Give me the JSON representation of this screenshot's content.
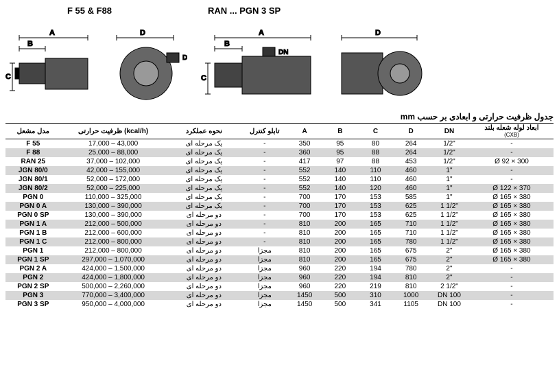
{
  "top": {
    "label_left": "F 55 & F88",
    "label_right": "RAN ... PGN 3 SP"
  },
  "caption": "جدول ظرفیت حرارتی و ابعادی بر حسب mm",
  "headers": {
    "model": "مدل مشعل",
    "capacity": "ظرفیت حرارتی (kcal/h)",
    "mode": "نحوه عملکرد",
    "panel": "تابلو کنترل",
    "A": "A",
    "B": "B",
    "C": "C",
    "D": "D",
    "DN": "DN",
    "tube": "ابعاد لوله شعله بلند",
    "tube_sub": "(CXB)"
  },
  "modes": {
    "single": "یک مرحله ای",
    "two": "دو مرحله ای"
  },
  "panel": {
    "dash": "-",
    "sep": "مجزا"
  },
  "rows": [
    {
      "model": "F 55",
      "cap": "17,000 – 43,000",
      "mode": "single",
      "panel": "dash",
      "A": "350",
      "B": "95",
      "C": "80",
      "D": "264",
      "DN": "1/2\"",
      "tube": "-"
    },
    {
      "model": "F 88",
      "cap": "25,000 – 88,000",
      "mode": "single",
      "panel": "dash",
      "A": "360",
      "B": "95",
      "C": "88",
      "D": "264",
      "DN": "1/2\"",
      "tube": "-"
    },
    {
      "model": "RAN 25",
      "cap": "37,000 – 102,000",
      "mode": "single",
      "panel": "dash",
      "A": "417",
      "B": "97",
      "C": "88",
      "D": "453",
      "DN": "1/2\"",
      "tube": "Ø 92 × 300"
    },
    {
      "model": "JGN 80/0",
      "cap": "42,000 – 155,000",
      "mode": "single",
      "panel": "dash",
      "A": "552",
      "B": "140",
      "C": "110",
      "D": "460",
      "DN": "1\"",
      "tube": "-"
    },
    {
      "model": "JGN 80/1",
      "cap": "52,000 – 172,000",
      "mode": "single",
      "panel": "dash",
      "A": "552",
      "B": "140",
      "C": "110",
      "D": "460",
      "DN": "1\"",
      "tube": "-"
    },
    {
      "model": "JGN 80/2",
      "cap": "52,000 – 225,000",
      "mode": "single",
      "panel": "dash",
      "A": "552",
      "B": "140",
      "C": "120",
      "D": "460",
      "DN": "1\"",
      "tube": "Ø 122 × 370"
    },
    {
      "model": "PGN 0",
      "cap": "110,000 – 325,000",
      "mode": "single",
      "panel": "dash",
      "A": "700",
      "B": "170",
      "C": "153",
      "D": "585",
      "DN": "1\"",
      "tube": "Ø 165 × 380"
    },
    {
      "model": "PGN 0 A",
      "cap": "130,000 – 390,000",
      "mode": "single",
      "panel": "dash",
      "A": "700",
      "B": "170",
      "C": "153",
      "D": "625",
      "DN": "1 1/2\"",
      "tube": "Ø 165 × 380"
    },
    {
      "model": "PGN 0 SP",
      "cap": "130,000 – 390,000",
      "mode": "two",
      "panel": "dash",
      "A": "700",
      "B": "170",
      "C": "153",
      "D": "625",
      "DN": "1 1/2\"",
      "tube": "Ø 165 × 380"
    },
    {
      "model": "PGN 1 A",
      "cap": "212,000 – 500,000",
      "mode": "two",
      "panel": "dash",
      "A": "810",
      "B": "200",
      "C": "165",
      "D": "710",
      "DN": "1 1/2\"",
      "tube": "Ø 165 × 380"
    },
    {
      "model": "PGN 1 B",
      "cap": "212,000 – 600,000",
      "mode": "two",
      "panel": "dash",
      "A": "810",
      "B": "200",
      "C": "165",
      "D": "710",
      "DN": "1 1/2\"",
      "tube": "Ø 165 × 380"
    },
    {
      "model": "PGN 1 C",
      "cap": "212,000 – 800,000",
      "mode": "two",
      "panel": "dash",
      "A": "810",
      "B": "200",
      "C": "165",
      "D": "780",
      "DN": "1 1/2\"",
      "tube": "Ø 165 × 380"
    },
    {
      "model": "PGN 1",
      "cap": "212,000 – 800,000",
      "mode": "two",
      "panel": "sep",
      "A": "810",
      "B": "200",
      "C": "165",
      "D": "675",
      "DN": "2\"",
      "tube": "Ø 165 × 380"
    },
    {
      "model": "PGN 1 SP",
      "cap": "297,000 – 1,070,000",
      "mode": "two",
      "panel": "sep",
      "A": "810",
      "B": "200",
      "C": "165",
      "D": "675",
      "DN": "2\"",
      "tube": "Ø 165 × 380"
    },
    {
      "model": "PGN 2 A",
      "cap": "424,000 – 1,500,000",
      "mode": "two",
      "panel": "sep",
      "A": "960",
      "B": "220",
      "C": "194",
      "D": "780",
      "DN": "2\"",
      "tube": "-"
    },
    {
      "model": "PGN 2",
      "cap": "424,000 – 1,800,000",
      "mode": "two",
      "panel": "sep",
      "A": "960",
      "B": "220",
      "C": "194",
      "D": "810",
      "DN": "2\"",
      "tube": "-"
    },
    {
      "model": "PGN 2 SP",
      "cap": "500,000 – 2,260,000",
      "mode": "two",
      "panel": "sep",
      "A": "960",
      "B": "220",
      "C": "219",
      "D": "810",
      "DN": "2 1/2\"",
      "tube": "-"
    },
    {
      "model": "PGN 3",
      "cap": "770,000 – 3,400,000",
      "mode": "two",
      "panel": "sep",
      "A": "1450",
      "B": "500",
      "C": "310",
      "D": "1000",
      "DN": "DN 100",
      "tube": "-"
    },
    {
      "model": "PGN 3 SP",
      "cap": "950,000 – 4,000,000",
      "mode": "two",
      "panel": "sep",
      "A": "1450",
      "B": "500",
      "C": "341",
      "D": "1105",
      "DN": "DN 100",
      "tube": "-"
    }
  ],
  "diagram_labels": {
    "A": "A",
    "B": "B",
    "C": "C",
    "D": "D",
    "DN": "DN"
  }
}
